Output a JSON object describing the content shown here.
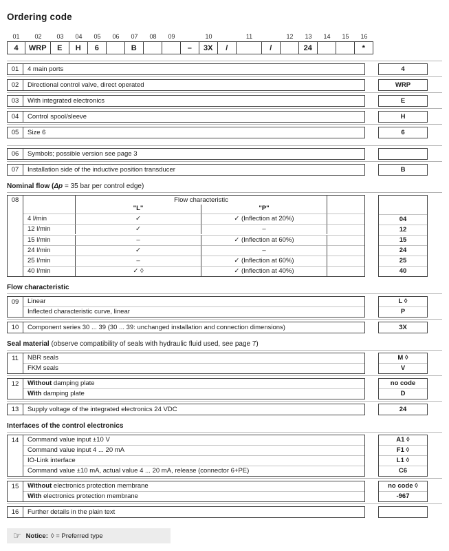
{
  "title": "Ordering code",
  "strip": {
    "cells": [
      {
        "label": "01",
        "value": "4"
      },
      {
        "label": "02",
        "value": "WRP"
      },
      {
        "label": "03",
        "value": "E"
      },
      {
        "label": "04",
        "value": "H"
      },
      {
        "label": "05",
        "value": "6"
      },
      {
        "label": "06",
        "value": ""
      },
      {
        "label": "07",
        "value": "B"
      },
      {
        "label": "08",
        "value": ""
      },
      {
        "label": "09",
        "value": ""
      },
      {
        "label": "",
        "value": "–"
      },
      {
        "label": "10",
        "value": "3X"
      },
      {
        "label": "",
        "value": "/"
      },
      {
        "label": "11",
        "value": ""
      },
      {
        "label": "",
        "value": "/"
      },
      {
        "label": "12",
        "value": ""
      },
      {
        "label": "13",
        "value": "24"
      },
      {
        "label": "14",
        "value": ""
      },
      {
        "label": "15",
        "value": ""
      },
      {
        "label": "16",
        "value": "*"
      }
    ]
  },
  "rows": {
    "r01": {
      "num": "01",
      "desc": "4 main ports",
      "code": "4"
    },
    "r02": {
      "num": "02",
      "desc": "Directional control valve, direct operated",
      "code": "WRP"
    },
    "r03": {
      "num": "03",
      "desc": "With integrated electronics",
      "code": "E"
    },
    "r04": {
      "num": "04",
      "desc": "Control spool/sleeve",
      "code": "H"
    },
    "r05": {
      "num": "05",
      "desc": "Size 6",
      "code": "6"
    },
    "r06": {
      "num": "06",
      "desc": "Symbols; possible version see page 3",
      "code": ""
    },
    "r07": {
      "num": "07",
      "desc": "Installation side of the inductive position transducer",
      "code": "B"
    },
    "r10": {
      "num": "10",
      "desc": "Component series 30 ... 39 (30 ... 39: unchanged installation and connection dimensions)",
      "code": "3X"
    },
    "r13": {
      "num": "13",
      "desc": "Supply voltage of the integrated electronics 24 VDC",
      "code": "24"
    },
    "r16": {
      "num": "16",
      "desc": "Further details in the plain text",
      "code": ""
    }
  },
  "headings": {
    "nominal": {
      "b": "Nominal flow (",
      "i": "Δp",
      "r": " = 35 bar per control edge)"
    },
    "flow": {
      "b": "Flow characteristic",
      "i": "",
      "r": ""
    },
    "seal": {
      "b": "Seal material",
      "i": "",
      "r": " (observe compatibility of seals with hydraulic fluid used, see page 7)"
    },
    "interfaces": {
      "b": "Interfaces of the control electronics",
      "i": "",
      "r": ""
    }
  },
  "t08": {
    "num": "08",
    "header": "Flow characteristic",
    "col_l": "\"L\"",
    "col_p": "\"P\"",
    "rows": [
      {
        "flow": "4 l/min",
        "l": "✓",
        "p": "✓ (Inflection at 20%)",
        "code": "04"
      },
      {
        "flow": "12 l/min",
        "l": "✓",
        "p": "–",
        "code": "12"
      },
      {
        "flow": "15 l/min",
        "l": "–",
        "p": "✓ (Inflection at 60%)",
        "code": "15"
      },
      {
        "flow": "24 l/min",
        "l": "✓",
        "p": "–",
        "code": "24"
      },
      {
        "flow": "25 l/min",
        "l": "–",
        "p": "✓ (Inflection at 60%)",
        "code": "25"
      },
      {
        "flow": "40 l/min",
        "l": "✓ ◊",
        "p": "✓ (Inflection at 40%)",
        "code": "40"
      }
    ]
  },
  "g09": {
    "num": "09",
    "rows": [
      {
        "b": "",
        "desc": "Linear",
        "code": "L ◊"
      },
      {
        "b": "",
        "desc": "Inflected characteristic curve, linear",
        "code": "P"
      }
    ]
  },
  "g11": {
    "num": "11",
    "rows": [
      {
        "b": "",
        "desc": "NBR seals",
        "code": "M ◊"
      },
      {
        "b": "",
        "desc": "FKM seals",
        "code": "V"
      }
    ]
  },
  "g12": {
    "num": "12",
    "rows": [
      {
        "b": "Without",
        "desc": " damping plate",
        "code": "no code"
      },
      {
        "b": "With",
        "desc": " damping plate",
        "code": "D"
      }
    ]
  },
  "g14": {
    "num": "14",
    "rows": [
      {
        "b": "",
        "desc": "Command value input ±10 V",
        "code": "A1 ◊"
      },
      {
        "b": "",
        "desc": "Command value input 4 ... 20 mA",
        "code": "F1 ◊"
      },
      {
        "b": "",
        "desc": "IO-Link interface",
        "code": "L1 ◊"
      },
      {
        "b": "",
        "desc": "Command value ±10 mA, actual value 4 ... 20 mA, release (connector 6+PE)",
        "code": "C6"
      }
    ]
  },
  "g15": {
    "num": "15",
    "rows": [
      {
        "b": "Without",
        "desc": " electronics protection membrane",
        "code": "no code ◊"
      },
      {
        "b": "With",
        "desc": " electronics protection membrane",
        "code": "-967"
      }
    ]
  },
  "notice": {
    "label": "Notice:",
    "text": "◊ = Preferred type"
  }
}
